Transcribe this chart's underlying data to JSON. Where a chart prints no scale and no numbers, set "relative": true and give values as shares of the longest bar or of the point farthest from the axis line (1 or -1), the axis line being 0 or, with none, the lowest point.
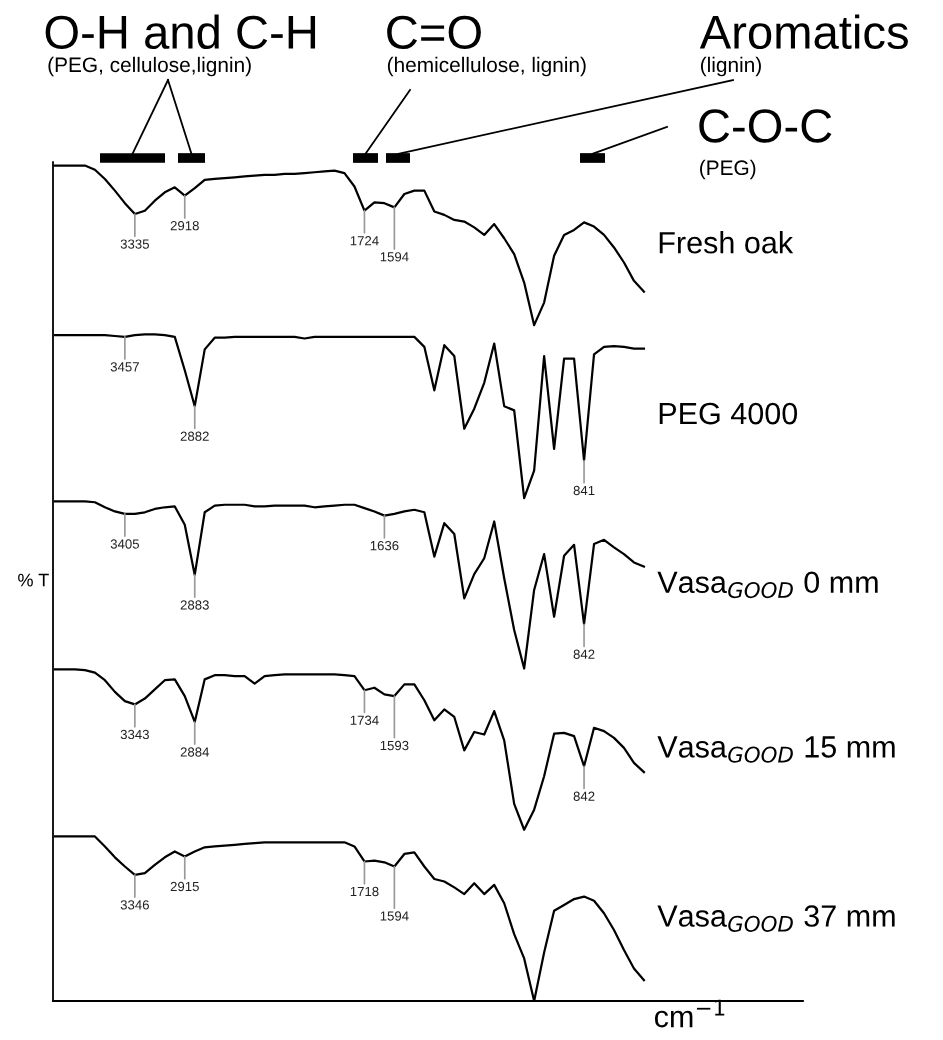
{
  "chart_data": {
    "type": "line",
    "relative": true,
    "xlabel": "cm$^{−1}$",
    "ylabel": "% T",
    "categories": [
      null,
      null,
      null,
      null,
      null,
      null,
      null,
      null,
      null,
      null,
      null,
      null,
      null,
      null,
      null,
      null,
      null,
      null,
      null,
      null,
      null,
      null,
      null,
      null,
      null,
      null,
      null,
      null,
      null,
      null,
      null,
      null,
      null,
      null,
      null,
      null,
      null,
      null,
      null,
      null,
      null,
      null,
      null,
      null,
      null,
      null,
      null,
      null,
      null,
      null,
      null,
      null,
      null,
      null,
      null,
      null,
      null,
      null,
      null,
      null
    ],
    "series": [
      {
        "name": "Fresh oak",
        "color": "#000000",
        "values": [
          1.0,
          1.0,
          1.0,
          1.0,
          0.995,
          0.984,
          0.97,
          0.955,
          0.942,
          0.946,
          0.958,
          0.968,
          0.974,
          0.964,
          0.973,
          0.983,
          0.984,
          0.985,
          0.986,
          0.987,
          0.988,
          0.989,
          0.989,
          0.99,
          0.99,
          0.991,
          0.992,
          0.993,
          0.994,
          0.991,
          0.975,
          0.946,
          0.956,
          0.955,
          0.95,
          0.966,
          0.97,
          0.97,
          0.945,
          0.941,
          0.935,
          0.933,
          0.926,
          0.917,
          0.93,
          0.913,
          0.894,
          0.86,
          0.809,
          0.836,
          0.892,
          0.917,
          0.923,
          0.932,
          0.927,
          0.917,
          0.902,
          0.884,
          0.862,
          0.849
        ]
      },
      {
        "name": "PEG 4000",
        "color": "#000000",
        "values": [
          0.797,
          0.797,
          0.797,
          0.797,
          0.797,
          0.797,
          0.796,
          0.795,
          0.797,
          0.798,
          0.798,
          0.797,
          0.795,
          0.755,
          0.712,
          0.78,
          0.794,
          0.794,
          0.795,
          0.795,
          0.795,
          0.795,
          0.795,
          0.795,
          0.795,
          0.793,
          0.795,
          0.795,
          0.795,
          0.795,
          0.795,
          0.795,
          0.795,
          0.795,
          0.795,
          0.795,
          0.795,
          0.783,
          0.731,
          0.785,
          0.772,
          0.685,
          0.709,
          0.74,
          0.787,
          0.712,
          0.707,
          0.602,
          0.635,
          0.772,
          0.661,
          0.769,
          0.769,
          0.647,
          0.774,
          0.783,
          0.784,
          0.783,
          0.781,
          0.781
        ]
      },
      {
        "name": "Vasa$_{GOOD}$ 0 mm",
        "color": "#000000",
        "values": [
          0.598,
          0.598,
          0.598,
          0.598,
          0.597,
          0.591,
          0.586,
          0.583,
          0.583,
          0.585,
          0.589,
          0.591,
          0.592,
          0.57,
          0.51,
          0.585,
          0.593,
          0.594,
          0.594,
          0.594,
          0.592,
          0.592,
          0.593,
          0.593,
          0.593,
          0.593,
          0.591,
          0.592,
          0.593,
          0.594,
          0.594,
          0.59,
          0.586,
          0.581,
          0.583,
          0.586,
          0.588,
          0.585,
          0.532,
          0.572,
          0.559,
          0.482,
          0.511,
          0.53,
          0.574,
          0.506,
          0.444,
          0.398,
          0.492,
          0.535,
          0.46,
          0.533,
          0.546,
          0.451,
          0.547,
          0.552,
          0.543,
          0.535,
          0.525,
          0.52
        ]
      },
      {
        "name": "Vasa$_{GOOD}$ 15 mm",
        "color": "#000000",
        "values": [
          0.397,
          0.397,
          0.397,
          0.396,
          0.393,
          0.384,
          0.37,
          0.359,
          0.355,
          0.362,
          0.373,
          0.384,
          0.385,
          0.365,
          0.334,
          0.385,
          0.39,
          0.39,
          0.389,
          0.389,
          0.38,
          0.389,
          0.39,
          0.391,
          0.391,
          0.391,
          0.391,
          0.391,
          0.391,
          0.39,
          0.389,
          0.372,
          0.375,
          0.367,
          0.365,
          0.379,
          0.379,
          0.36,
          0.336,
          0.349,
          0.34,
          0.3,
          0.322,
          0.319,
          0.347,
          0.312,
          0.236,
          0.205,
          0.229,
          0.269,
          0.32,
          0.321,
          0.317,
          0.281,
          0.327,
          0.323,
          0.315,
          0.303,
          0.285,
          0.274
        ]
      },
      {
        "name": "Vasa$_{GOOD}$ 37 mm",
        "color": "#000000",
        "values": [
          0.197,
          0.197,
          0.197,
          0.197,
          0.197,
          0.185,
          0.172,
          0.161,
          0.151,
          0.153,
          0.163,
          0.172,
          0.179,
          0.173,
          0.179,
          0.184,
          0.185,
          0.186,
          0.187,
          0.188,
          0.189,
          0.19,
          0.19,
          0.19,
          0.19,
          0.19,
          0.19,
          0.19,
          0.19,
          0.19,
          0.185,
          0.167,
          0.168,
          0.166,
          0.161,
          0.176,
          0.178,
          0.161,
          0.146,
          0.143,
          0.136,
          0.128,
          0.141,
          0.128,
          0.139,
          0.117,
          0.08,
          0.051,
          0.0,
          0.058,
          0.108,
          0.115,
          0.122,
          0.125,
          0.12,
          0.105,
          0.085,
          0.061,
          0.039,
          0.025
        ]
      }
    ],
    "annotations": [
      "O-H and C-H",
      "(PEG, cellulose,lignin)",
      "C=O",
      "(hemicellulose, lignin)",
      "Aromatics",
      "(lignin)",
      "C-O-C",
      "(PEG)",
      "3335",
      "2918",
      "1724",
      "1594",
      "3457",
      "2882",
      "841",
      "3405",
      "2883",
      "1636",
      "842",
      "3343",
      "2884",
      "1734",
      "1593",
      "842",
      "3346",
      "2915",
      "1718",
      "1594"
    ]
  }
}
